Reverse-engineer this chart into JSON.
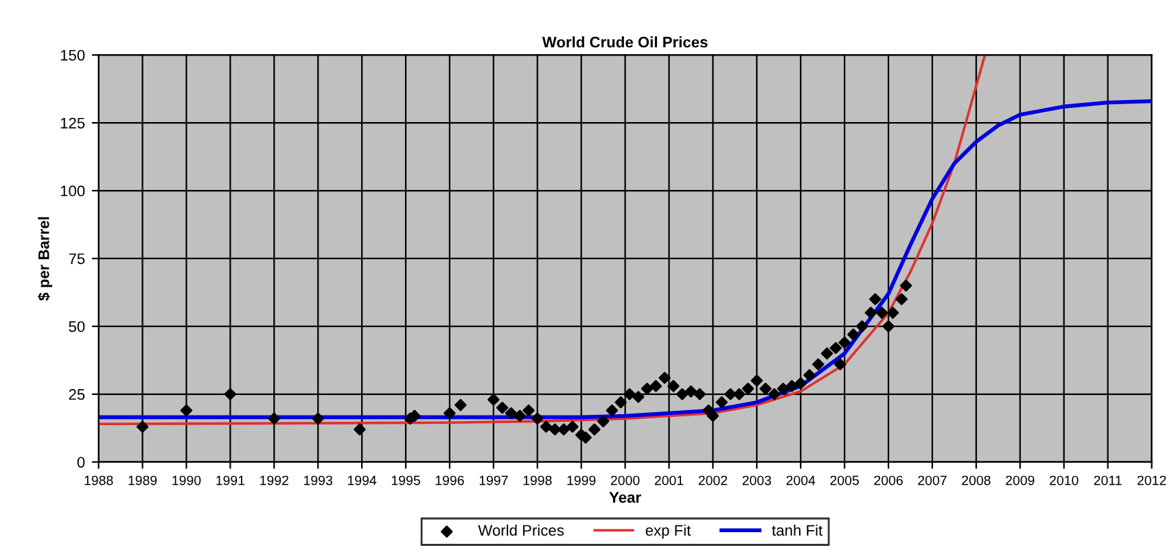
{
  "chart_data": {
    "type": "scatter",
    "title": "World Crude Oil Prices",
    "xlabel": "Year",
    "ylabel": "$ per Barrel",
    "xlim": [
      1988,
      2012
    ],
    "xticks": [
      1988,
      1989,
      1990,
      1991,
      1992,
      1993,
      1994,
      1995,
      1996,
      1997,
      1998,
      1999,
      2000,
      2001,
      2002,
      2003,
      2004,
      2005,
      2006,
      2007,
      2008,
      2009,
      2010,
      2011,
      2012
    ],
    "ylim": [
      0,
      150
    ],
    "yticks": [
      0,
      25,
      50,
      75,
      100,
      125,
      150
    ],
    "grid": true,
    "legend": "bottom",
    "series": [
      {
        "name": "World Prices",
        "marker": "diamond",
        "color": "#000000",
        "x": [
          1989.0,
          1990.0,
          1991.0,
          1992.0,
          1993.0,
          1993.95,
          1995.1,
          1995.2,
          1996.0,
          1996.25,
          1997.0,
          1997.2,
          1997.4,
          1997.6,
          1997.8,
          1998.0,
          1998.2,
          1998.4,
          1998.6,
          1998.8,
          1999.0,
          1999.1,
          1999.3,
          1999.5,
          1999.7,
          1999.9,
          2000.1,
          2000.3,
          2000.5,
          2000.7,
          2000.9,
          2001.1,
          2001.3,
          2001.5,
          2001.7,
          2001.9,
          2002.0,
          2002.2,
          2002.4,
          2002.6,
          2002.8,
          2003.0,
          2003.2,
          2003.4,
          2003.6,
          2003.8,
          2004.0,
          2004.2,
          2004.4,
          2004.6,
          2004.8,
          2004.9,
          2005.0,
          2005.2,
          2005.4,
          2005.6,
          2005.7,
          2005.85,
          2006.0,
          2006.1,
          2006.3,
          2006.4
        ],
        "values": [
          13,
          19,
          25,
          16,
          16,
          12,
          16,
          17,
          18,
          21,
          23,
          20,
          18,
          17,
          19,
          16,
          13,
          12,
          12,
          13,
          10,
          9,
          12,
          15,
          19,
          22,
          25,
          24,
          27,
          28,
          31,
          28,
          25,
          26,
          25,
          19,
          17,
          22,
          25,
          25,
          27,
          30,
          27,
          25,
          27,
          28,
          29,
          32,
          36,
          40,
          42,
          36,
          44,
          47,
          50,
          55,
          60,
          55,
          50,
          55,
          60,
          65
        ]
      },
      {
        "name": "exp Fit",
        "type": "line",
        "marker": "none",
        "color": "#e03030",
        "x": [
          1988,
          1996,
          1998,
          2000,
          2002,
          2003,
          2004,
          2005,
          2006,
          2006.5,
          2007,
          2007.5,
          2008.2
        ],
        "values": [
          14,
          14.5,
          15,
          16,
          18,
          21,
          26,
          36,
          55,
          70,
          88,
          110,
          150
        ]
      },
      {
        "name": "tanh Fit",
        "type": "line",
        "marker": "none",
        "color": "#0000e0",
        "x": [
          1988,
          1999,
          2000,
          2002,
          2003,
          2004,
          2005,
          2006,
          2006.5,
          2007,
          2007.5,
          2008,
          2008.5,
          2009,
          2010,
          2011,
          2012
        ],
        "values": [
          16.5,
          16.5,
          17,
          19,
          22,
          28,
          40,
          62,
          80,
          97,
          110,
          118,
          124,
          128,
          131,
          132.5,
          133
        ]
      }
    ]
  }
}
